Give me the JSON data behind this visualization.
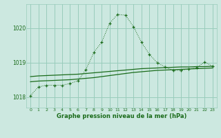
{
  "xlabel": "Graphe pression niveau de la mer (hPa)",
  "background_color": "#cce8e0",
  "grid_color": "#99ccbb",
  "line_color": "#1a6b1a",
  "x_ticks": [
    0,
    1,
    2,
    3,
    4,
    5,
    6,
    7,
    8,
    9,
    10,
    11,
    12,
    13,
    14,
    15,
    16,
    17,
    18,
    19,
    20,
    21,
    22,
    23
  ],
  "y_ticks": [
    1018,
    1019,
    1020
  ],
  "ylim": [
    1017.7,
    1020.7
  ],
  "xlim": [
    -0.5,
    23.5
  ],
  "main_series": [
    1018.05,
    1018.3,
    1018.35,
    1018.35,
    1018.35,
    1018.4,
    1018.48,
    1018.8,
    1019.3,
    1019.6,
    1020.15,
    1020.4,
    1020.38,
    1020.05,
    1019.6,
    1019.25,
    1019.0,
    1018.88,
    1018.78,
    1018.78,
    1018.82,
    1018.87,
    1019.02,
    1018.9
  ],
  "smooth_series1": [
    1018.45,
    1018.47,
    1018.48,
    1018.49,
    1018.5,
    1018.51,
    1018.53,
    1018.55,
    1018.57,
    1018.6,
    1018.63,
    1018.66,
    1018.69,
    1018.72,
    1018.74,
    1018.76,
    1018.78,
    1018.79,
    1018.8,
    1018.81,
    1018.82,
    1018.83,
    1018.84,
    1018.85
  ],
  "smooth_series2": [
    1018.6,
    1018.62,
    1018.63,
    1018.64,
    1018.65,
    1018.66,
    1018.67,
    1018.69,
    1018.71,
    1018.73,
    1018.75,
    1018.77,
    1018.79,
    1018.81,
    1018.83,
    1018.84,
    1018.85,
    1018.86,
    1018.87,
    1018.88,
    1018.88,
    1018.89,
    1018.89,
    1018.9
  ]
}
